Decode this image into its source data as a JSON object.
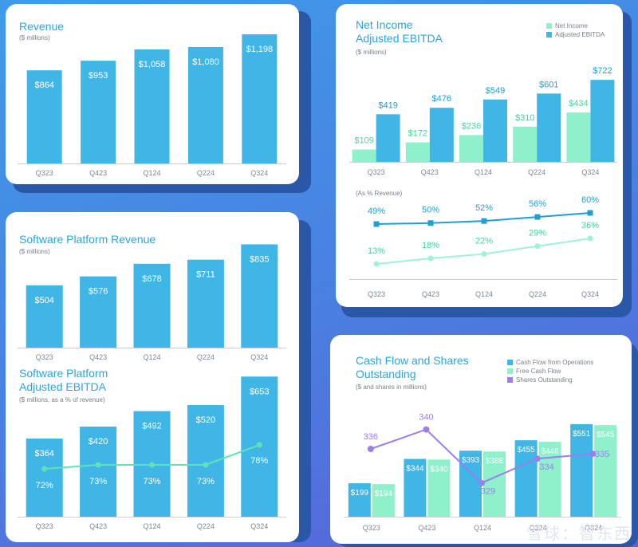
{
  "colors": {
    "blue": "#3fb6e6",
    "mint": "#8ff0cc",
    "mint_text": "#3fd79c",
    "purple": "#9b7ef0",
    "line_blue": "#1f9fd3",
    "title": "#2aa5dd",
    "axis": "#c9ced6"
  },
  "revenue": {
    "title": "Revenue",
    "subtitle": "($ millions)"
  },
  "net_income": {
    "title_line1": "Net Income",
    "title_line2": "Adjusted EBITDA",
    "subtitle": "($ millions)",
    "pct_subtitle": "(As % Revenue)",
    "legend": [
      "Net Income",
      "Adjusted EBITDA"
    ]
  },
  "software": {
    "title": "Software Platform Revenue",
    "subtitle": "($ millions)"
  },
  "software_ebitda": {
    "title_line1": "Software Platform",
    "title_line2": "Adjusted EBITDA",
    "subtitle": "($ millions, as a % of revenue)"
  },
  "cashflow": {
    "title_line1": "Cash Flow and Shares",
    "title_line2": "Outstanding",
    "subtitle": "($ and shares in millions)",
    "legend": [
      "Cash Flow from Operations",
      "Free Cash Flow",
      "Shares Outstanding"
    ]
  },
  "watermark": "雪球：智东西",
  "chart_data": [
    {
      "id": "revenue",
      "type": "bar",
      "title": "Revenue",
      "ylabel": "$ millions",
      "categories": [
        "Q323",
        "Q423",
        "Q124",
        "Q224",
        "Q324"
      ],
      "values": [
        864,
        953,
        1058,
        1080,
        1198
      ],
      "labels": [
        "$864",
        "$953",
        "$1,058",
        "$1,080",
        "$1,198"
      ],
      "ylim": [
        0,
        1250
      ]
    },
    {
      "id": "net_income",
      "type": "bar",
      "title": "Net Income / Adjusted EBITDA",
      "ylabel": "$ millions",
      "categories": [
        "Q323",
        "Q423",
        "Q124",
        "Q224",
        "Q324"
      ],
      "series": [
        {
          "name": "Net Income",
          "values": [
            109,
            172,
            236,
            310,
            434
          ],
          "labels": [
            "$109",
            "$172",
            "$236",
            "$310",
            "$434"
          ]
        },
        {
          "name": "Adjusted EBITDA",
          "values": [
            419,
            476,
            549,
            601,
            722
          ],
          "labels": [
            "$419",
            "$476",
            "$549",
            "$601",
            "$722"
          ]
        }
      ],
      "ylim": [
        0,
        800
      ]
    },
    {
      "id": "margins",
      "type": "line",
      "title": "(As % Revenue)",
      "categories": [
        "Q323",
        "Q423",
        "Q124",
        "Q224",
        "Q324"
      ],
      "series": [
        {
          "name": "Adjusted EBITDA",
          "values": [
            49,
            50,
            52,
            56,
            60
          ],
          "labels": [
            "49%",
            "50%",
            "52%",
            "56%",
            "60%"
          ]
        },
        {
          "name": "Net Income",
          "values": [
            13,
            18,
            22,
            29,
            36
          ],
          "labels": [
            "13%",
            "18%",
            "22%",
            "29%",
            "36%"
          ]
        }
      ]
    },
    {
      "id": "software_revenue",
      "type": "bar",
      "title": "Software Platform Revenue",
      "ylabel": "$ millions",
      "categories": [
        "Q323",
        "Q423",
        "Q124",
        "Q224",
        "Q324"
      ],
      "values": [
        504,
        576,
        678,
        711,
        835
      ],
      "labels": [
        "$504",
        "$576",
        "$678",
        "$711",
        "$835"
      ],
      "ylim": [
        0,
        870
      ]
    },
    {
      "id": "software_ebitda",
      "type": "bar",
      "title": "Software Platform Adjusted EBITDA",
      "ylabel": "$ millions, as a % of revenue",
      "categories": [
        "Q323",
        "Q423",
        "Q124",
        "Q224",
        "Q324"
      ],
      "values": [
        364,
        420,
        492,
        520,
        653
      ],
      "labels": [
        "$364",
        "$420",
        "$492",
        "$520",
        "$653"
      ],
      "pct_values": [
        72,
        73,
        73,
        73,
        78
      ],
      "pct_labels": [
        "72%",
        "73%",
        "73%",
        "73%",
        "78%"
      ],
      "ylim": [
        0,
        680
      ]
    },
    {
      "id": "cashflow",
      "type": "bar",
      "title": "Cash Flow and Shares Outstanding",
      "ylabel": "$ and shares in millions",
      "categories": [
        "Q323",
        "Q423",
        "Q124",
        "Q224",
        "Q324"
      ],
      "series": [
        {
          "name": "Cash Flow from Operations",
          "values": [
            199,
            344,
            393,
            455,
            551
          ],
          "labels": [
            "$199",
            "$344",
            "$393",
            "$455",
            "$551"
          ]
        },
        {
          "name": "Free Cash Flow",
          "values": [
            194,
            340,
            388,
            446,
            545
          ],
          "labels": [
            "$194",
            "$340",
            "$388",
            "$446",
            "$545"
          ]
        },
        {
          "name": "Shares Outstanding",
          "values": [
            336,
            340,
            329,
            334,
            335
          ],
          "labels": [
            "336",
            "340",
            "329",
            "334",
            "335"
          ]
        }
      ],
      "ylim": [
        0,
        560
      ]
    }
  ]
}
